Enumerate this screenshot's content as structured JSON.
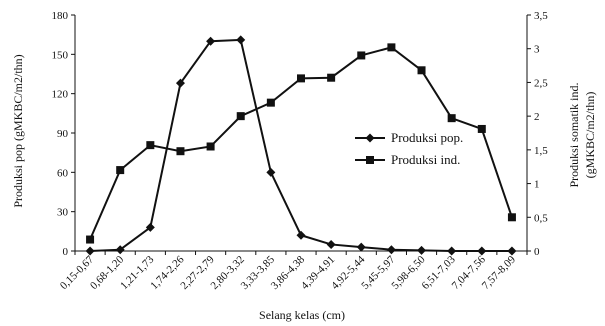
{
  "chart_data": {
    "type": "line",
    "xlabel": "Selang kelas (cm)",
    "ylabel_left": "Produksi pop (gMKBC/m2/thn)",
    "ylabel_right_line1": "Produksi somatik ind.",
    "ylabel_right_line2": "(gMKBC/m2/thn)",
    "categories": [
      "0,15-0,67",
      "0,68-1,20",
      "1,21-1,73",
      "1,74-2,26",
      "2,27-2,79",
      "2,80-3,32",
      "3,33-3,85",
      "3,86-4,38",
      "4,39-4,91",
      "4,92-5,44",
      "5,45-5,97",
      "5,98-6,50",
      "6,51-7,03",
      "7,04-7,56",
      "7,57-8,09"
    ],
    "y_left": {
      "min": 0,
      "max": 180,
      "ticks": [
        "0",
        "30",
        "60",
        "90",
        "120",
        "150",
        "180"
      ]
    },
    "y_right": {
      "min": 0,
      "max": 3.5,
      "ticks": [
        "0",
        "0,5",
        "1",
        "1,5",
        "2",
        "2,5",
        "3",
        "3,5"
      ]
    },
    "series": [
      {
        "name": "Produksi pop.",
        "axis": "left",
        "marker": "diamond",
        "values": [
          0,
          1,
          18,
          128,
          160,
          161,
          60,
          12,
          5,
          3,
          1,
          0.5,
          0,
          0,
          0
        ]
      },
      {
        "name": "Produksi ind.",
        "axis": "right",
        "marker": "square",
        "values": [
          0.17,
          1.2,
          1.57,
          1.48,
          1.55,
          2.0,
          2.2,
          2.56,
          2.57,
          2.9,
          3.02,
          2.68,
          1.97,
          1.81,
          0.5
        ]
      }
    ],
    "legend_position": "center-right",
    "grid": false
  }
}
